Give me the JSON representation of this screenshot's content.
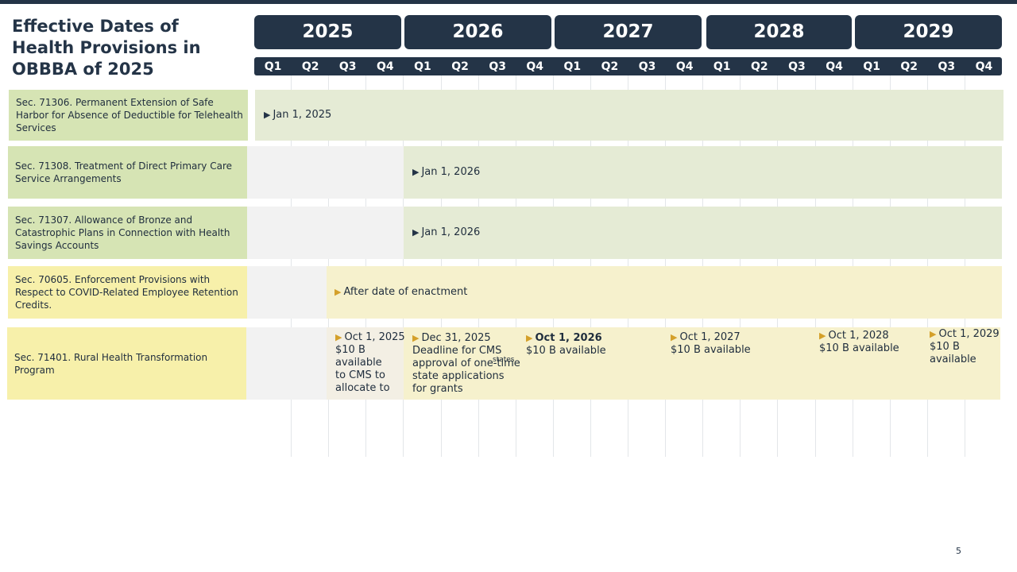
{
  "title": "Effective Dates of Health Provisions in OBBBA of 2025",
  "years": [
    "2025",
    "2026",
    "2027",
    "2028",
    "2029"
  ],
  "quarters": [
    "Q1",
    "Q2",
    "Q3",
    "Q4",
    "Q1",
    "Q2",
    "Q3",
    "Q4",
    "Q1",
    "Q2",
    "Q3",
    "Q4",
    "Q1",
    "Q2",
    "Q3",
    "Q4",
    "Q1",
    "Q2",
    "Q3",
    "Q4"
  ],
  "provisions": [
    {
      "label": "Sec. 71306. Permanent Extension of Safe Harbor for Absence of Deductible for Telehealth Services",
      "marker": "Jan 1, 2025"
    },
    {
      "label": "Sec. 71308. Treatment of Direct Primary Care Service Arrangements",
      "marker": "Jan 1, 2026"
    },
    {
      "label": "Sec. 71307. Allowance of Bronze and Catastrophic Plans in Connection with Health Savings Accounts",
      "marker": "Jan 1, 2026"
    },
    {
      "label": "Sec. 70605.  Enforcement Provisions with Respect to COVID-Related Employee Retention Credits.",
      "marker": "After date of enactment"
    },
    {
      "label": "Sec. 71401. Rural Health Transformation Program"
    }
  ],
  "rural": [
    {
      "date": "Oct 1, 2025",
      "lines": [
        "$10 B",
        "available",
        "to CMS to",
        "allocate to"
      ]
    },
    {
      "date": "Dec 31, 2025",
      "lines": [
        "Deadline for CMS",
        "approval of one-time",
        "state applications",
        "for grants"
      ]
    },
    {
      "date": "Oct 1, 2026",
      "lines": [
        "$10 B available"
      ]
    },
    {
      "date": "Oct 1, 2027",
      "lines": [
        "$10 B available"
      ]
    },
    {
      "date": "Oct 1, 2028",
      "lines": [
        "$10 B available"
      ]
    },
    {
      "date": "Oct 1, 2029",
      "lines": [
        "$10 B",
        "available"
      ]
    }
  ],
  "rural_overlap_text": "states",
  "page_number": "5",
  "colors": {
    "navy": "#243447",
    "green_label": "#d6e4b4",
    "green_bar": "#e5ebd5",
    "yellow_label": "#f7f0aa",
    "yellow_bar": "#f6f1cd",
    "marker_gold": "#d4a02a"
  }
}
